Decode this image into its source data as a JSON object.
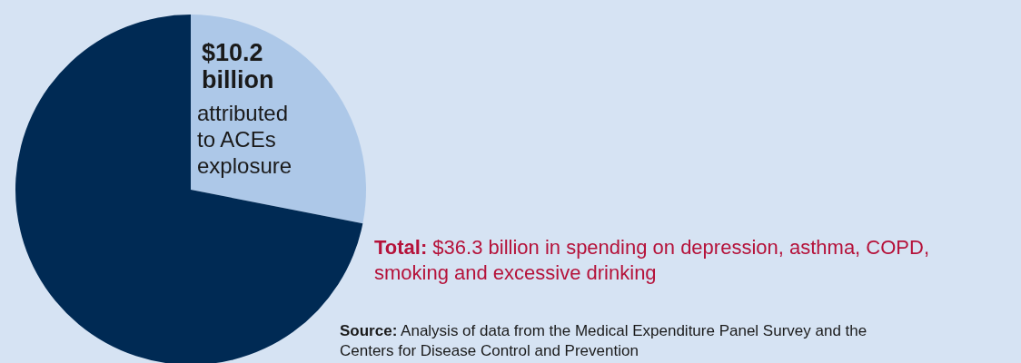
{
  "chart_data": {
    "type": "pie",
    "categories": [
      null,
      null
    ],
    "values": [
      10.2,
      26.1
    ],
    "colors": [
      "#adc8e8",
      "#002a54"
    ],
    "value_labels": [
      "$10.2 billion",
      null
    ],
    "annotations": [
      "attributed to ACEs explosure",
      "Total: $36.3 billion in spending on depression, asthma, COPD, smoking and excessive drinking",
      "Source: Analysis of data from the Medical Expenditure Panel Survey and the Centers for Disease Control and Prevention"
    ]
  }
}
